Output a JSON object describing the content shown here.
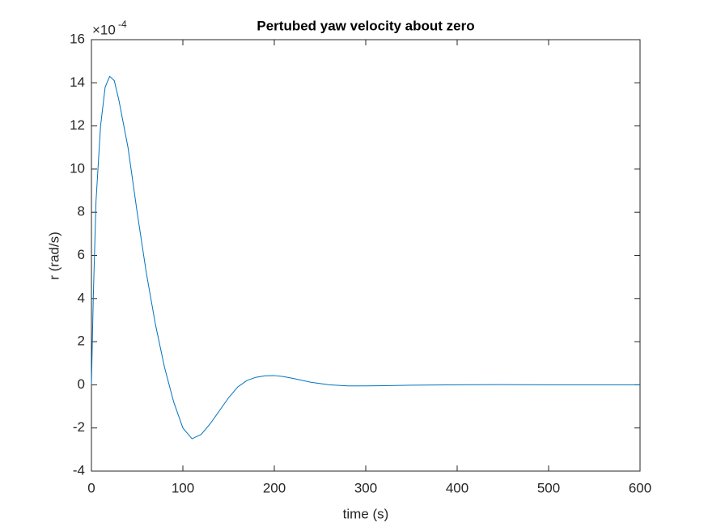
{
  "chart_data": {
    "type": "line",
    "title": "Pertubed yaw velocity about zero",
    "x_label": "time (s)",
    "y_label": "r (rad/s)",
    "y_multiplier": "×10",
    "y_exponent": "-4",
    "xlim": [
      0,
      600
    ],
    "xticks": [
      0,
      100,
      200,
      300,
      400,
      500,
      600
    ],
    "ylim": [
      -4,
      16
    ],
    "yticks": [
      -4,
      -2,
      0,
      2,
      4,
      6,
      8,
      10,
      12,
      14,
      16
    ],
    "x": [
      0,
      2,
      5,
      10,
      15,
      20,
      25,
      30,
      40,
      50,
      60,
      70,
      80,
      90,
      100,
      110,
      120,
      130,
      140,
      150,
      160,
      170,
      180,
      190,
      200,
      210,
      220,
      240,
      260,
      280,
      300,
      320,
      350,
      400,
      450,
      500,
      550,
      600
    ],
    "series": [
      {
        "color": "#0072bd",
        "values": [
          0,
          4,
          8.5,
          12,
          13.8,
          14.3,
          14.1,
          13.2,
          11,
          8,
          5.2,
          2.8,
          0.8,
          -0.8,
          -2,
          -2.5,
          -2.3,
          -1.8,
          -1.2,
          -0.6,
          -0.1,
          0.2,
          0.35,
          0.42,
          0.43,
          0.38,
          0.3,
          0.12,
          0,
          -0.05,
          -0.05,
          -0.04,
          -0.02,
          0,
          0.01,
          0,
          0,
          0
        ]
      }
    ]
  }
}
